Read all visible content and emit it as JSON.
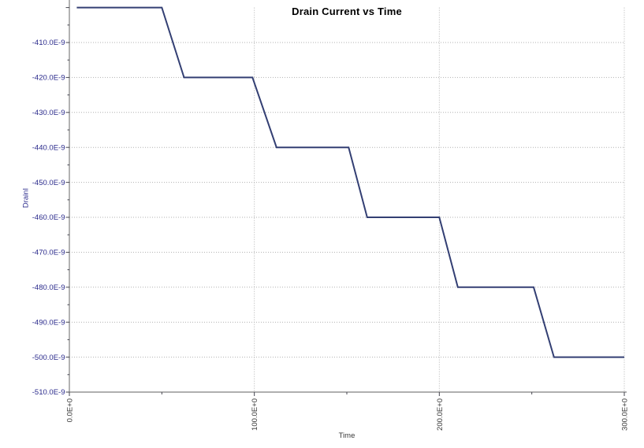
{
  "window": {
    "background": "#ffffff"
  },
  "chart_data": {
    "type": "line",
    "title": "Drain Current vs Time",
    "xlabel": "Time",
    "ylabel": "DrainI",
    "series": [
      {
        "name": "DrainI",
        "x_seconds": [
          4,
          50,
          62,
          99,
          112,
          151,
          161,
          200,
          210,
          251,
          262,
          300
        ],
        "y_nanoamps": [
          -400,
          -400,
          -420,
          -420,
          -440,
          -440,
          -460,
          -460,
          -480,
          -480,
          -500,
          -500
        ]
      }
    ],
    "xlim": [
      0,
      300
    ],
    "ylim_nanoamps": [
      -510,
      -400
    ],
    "x_major_ticks": [
      0,
      100,
      200,
      300
    ],
    "x_tick_labels": [
      "0.0E+0",
      "100.0E+0",
      "200.0E+0",
      "300.0E+0"
    ],
    "x_minor_ticks": [
      50,
      150,
      250
    ],
    "y_major_ticks_nanoamps": [
      -400,
      -410,
      -420,
      -430,
      -440,
      -450,
      -460,
      -470,
      -480,
      -490,
      -500,
      -510
    ],
    "y_tick_labels": [
      "",
      "-410.0E-9",
      "-420.0E-9",
      "-430.0E-9",
      "-440.0E-9",
      "-450.0E-9",
      "-460.0E-9",
      "-470.0E-9",
      "-480.0E-9",
      "-490.0E-9",
      "-500.0E-9",
      "-510.0E-9"
    ],
    "y_minor_ticks_nanoamps": [
      -405,
      -415,
      -425,
      -435,
      -445,
      -455,
      -465,
      -475,
      -485,
      -495,
      -505
    ],
    "grid": true,
    "grid_style": "dotted",
    "legend_position": "none",
    "colors": {
      "line": "#333f73",
      "grid": "#b0b0b0",
      "axis": "#7f7f7f",
      "tick": "#44444f",
      "y_tick_label": "#2b2b8c",
      "x_tick_label": "#3a3a3a",
      "title": "#000000"
    }
  }
}
